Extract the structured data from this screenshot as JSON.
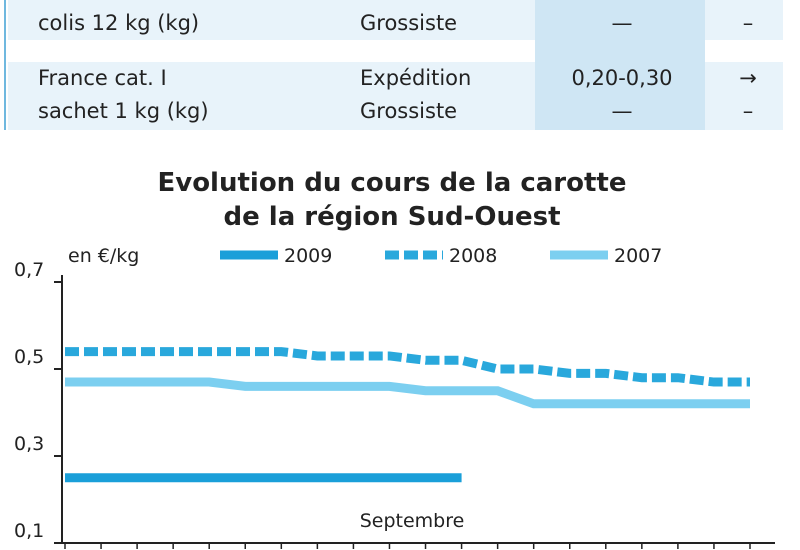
{
  "table": {
    "rows": [
      [
        [
          "colis 12 kg (kg)"
        ],
        [
          "Grossiste"
        ],
        [
          "—"
        ],
        [
          "–"
        ]
      ],
      [
        [
          "France cat. I",
          "sachet 1 kg (kg)"
        ],
        [
          "Expédition",
          "Grossiste"
        ],
        [
          "0,20-0,30",
          "—"
        ],
        [
          "→",
          "–"
        ]
      ]
    ]
  },
  "chart_data": {
    "type": "line",
    "title": [
      "Evolution du cours de la carotte",
      "de la région Sud-Ouest"
    ],
    "y_label": "en €/kg",
    "x_label": "Septembre",
    "categories": [
      null,
      null,
      null,
      null,
      null,
      null,
      null,
      null,
      null,
      null,
      null,
      null,
      null,
      null,
      null,
      null,
      null,
      null,
      null,
      null
    ],
    "series": [
      {
        "name": "2009",
        "color": "#1a9fd9",
        "style": "solid",
        "values": [
          0.25,
          0.25,
          0.25,
          0.25,
          0.25,
          0.25,
          0.25,
          0.25,
          0.25,
          0.25,
          0.25,
          0.25,
          null,
          null,
          null,
          null,
          null,
          null,
          null,
          null
        ]
      },
      {
        "name": "2008",
        "color": "#29a8dc",
        "style": "dashed",
        "values": [
          0.54,
          0.54,
          0.54,
          0.54,
          0.54,
          0.54,
          0.54,
          0.53,
          0.53,
          0.53,
          0.52,
          0.52,
          0.5,
          0.5,
          0.49,
          0.49,
          0.48,
          0.48,
          0.47,
          0.47
        ]
      },
      {
        "name": "2007",
        "color": "#7ccff0",
        "style": "solid",
        "values": [
          0.47,
          0.47,
          0.47,
          0.47,
          0.47,
          0.46,
          0.46,
          0.46,
          0.46,
          0.46,
          0.45,
          0.45,
          0.45,
          0.42,
          0.42,
          0.42,
          0.42,
          0.42,
          0.42,
          0.42
        ]
      }
    ],
    "ylim": [
      0.1,
      0.7
    ],
    "yticks": [
      {
        "value": 0.1,
        "label": "0,1"
      },
      {
        "value": 0.3,
        "label": "0,3"
      },
      {
        "value": 0.5,
        "label": "0,5"
      },
      {
        "value": 0.7,
        "label": "0,7"
      }
    ]
  }
}
